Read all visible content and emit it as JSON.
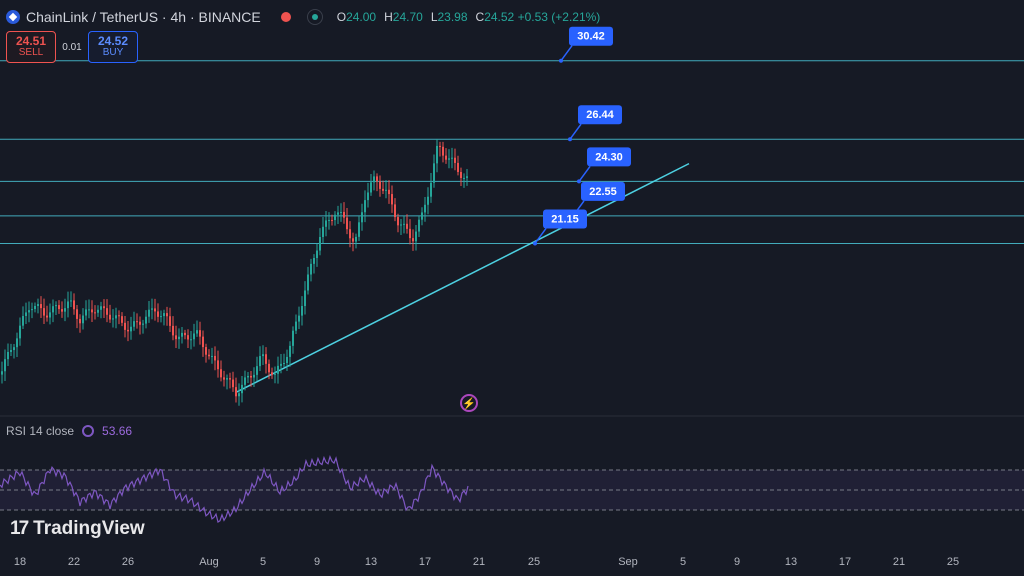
{
  "header": {
    "symbol": "ChainLink / TetherUS · 4h · BINANCE",
    "ohlc": [
      {
        "k": "O",
        "v": "24.00"
      },
      {
        "k": "H",
        "v": "24.70"
      },
      {
        "k": "L",
        "v": "23.98"
      },
      {
        "k": "C",
        "v": "24.52 +0.53 (+2.21%)"
      }
    ]
  },
  "trade": {
    "sell_price": "24.51",
    "sell_label": "SELL",
    "spread": "0.01",
    "buy_price": "24.52",
    "buy_label": "BUY"
  },
  "rsi": {
    "label": "RSI 14 close",
    "value": "53.66"
  },
  "brand": {
    "name": "TradingView",
    "icon": "17"
  },
  "colors": {
    "up": "#26a69a",
    "down": "#ef5350",
    "level": "#4dd0e1",
    "badge": "#2962ff",
    "rsi": "#7e57c2"
  },
  "chart_data": {
    "type": "candlestick",
    "x_ticks": [
      "18",
      "22",
      "26",
      "Aug",
      "5",
      "9",
      "13",
      "17",
      "21",
      "25",
      "Sep",
      "5",
      "9",
      "13",
      "17",
      "21",
      "25"
    ],
    "levels": [
      30.42,
      26.44,
      24.3,
      22.55,
      21.15
    ],
    "price_range": [
      12.4,
      33.5
    ],
    "trendline": [
      {
        "t": 0,
        "price": 13.6
      },
      {
        "t": 1,
        "price": 25.2
      }
    ],
    "rsi_guides": [
      70,
      50,
      30
    ]
  }
}
